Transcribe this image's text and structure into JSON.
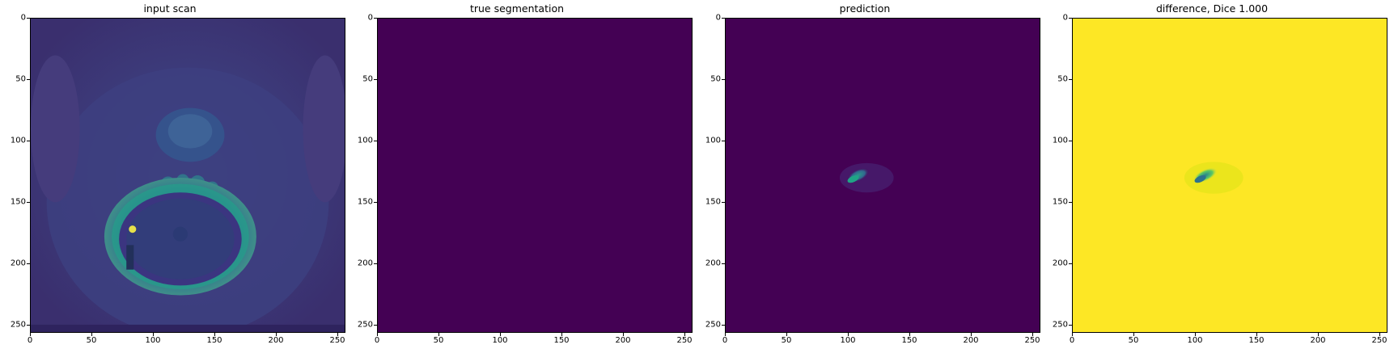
{
  "panels": [
    {
      "title": "input scan"
    },
    {
      "title": "true segmentation"
    },
    {
      "title": "prediction"
    },
    {
      "title": "difference, Dice 1.000"
    }
  ],
  "axes": {
    "x_ticks": [
      "0",
      "50",
      "100",
      "150",
      "200",
      "250"
    ],
    "y_ticks": [
      "0",
      "50",
      "100",
      "150",
      "200",
      "250"
    ],
    "x_range": [
      0,
      256
    ],
    "y_range": [
      0,
      256
    ],
    "y_inverted": true
  },
  "colors": {
    "viridis_min": "#440154",
    "viridis_max": "#fde725",
    "viridis_mid": "#21918c",
    "scan_background": "#3b3d7c"
  }
}
